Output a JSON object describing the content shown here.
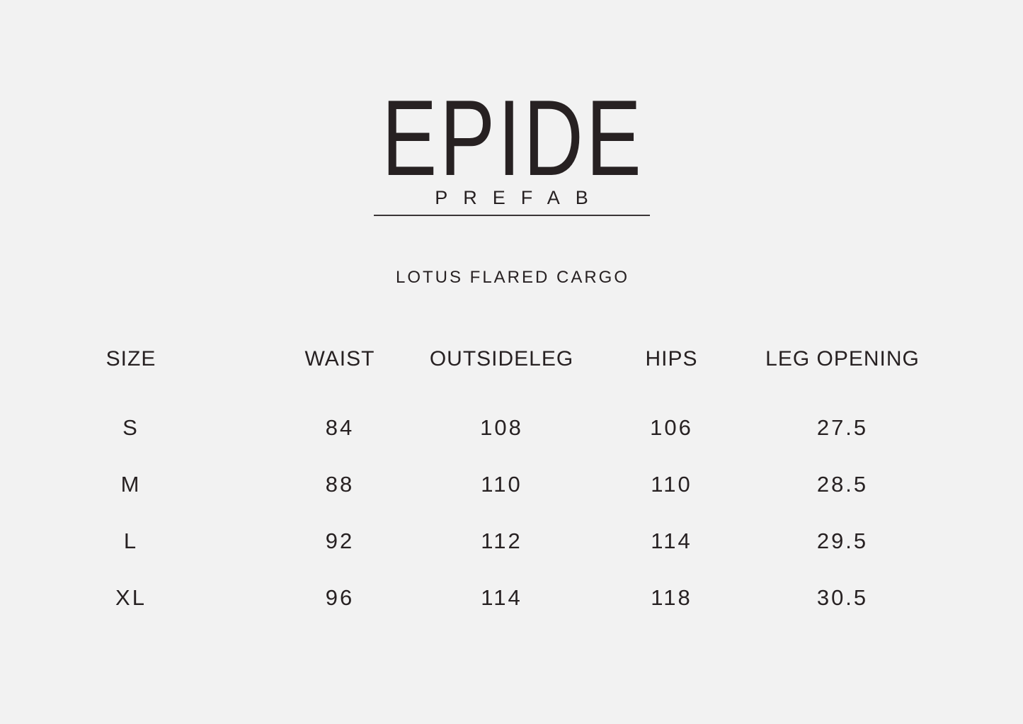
{
  "colors": {
    "background": "#f2f2f2",
    "text": "#272122",
    "underline": "#3a3637"
  },
  "brand": {
    "name": "EPIDE",
    "subtitle": "PREFAB"
  },
  "chart_data": {
    "type": "table",
    "title": "LOTUS FLARED CARGO",
    "columns": [
      "SIZE",
      "WAIST",
      "OUTSIDELEG",
      "HIPS",
      "LEG OPENING"
    ],
    "rows": [
      [
        "S",
        "84",
        "108",
        "106",
        "27.5"
      ],
      [
        "M",
        "88",
        "110",
        "110",
        "28.5"
      ],
      [
        "L",
        "92",
        "112",
        "114",
        "29.5"
      ],
      [
        "XL",
        "96",
        "114",
        "118",
        "30.5"
      ]
    ]
  }
}
